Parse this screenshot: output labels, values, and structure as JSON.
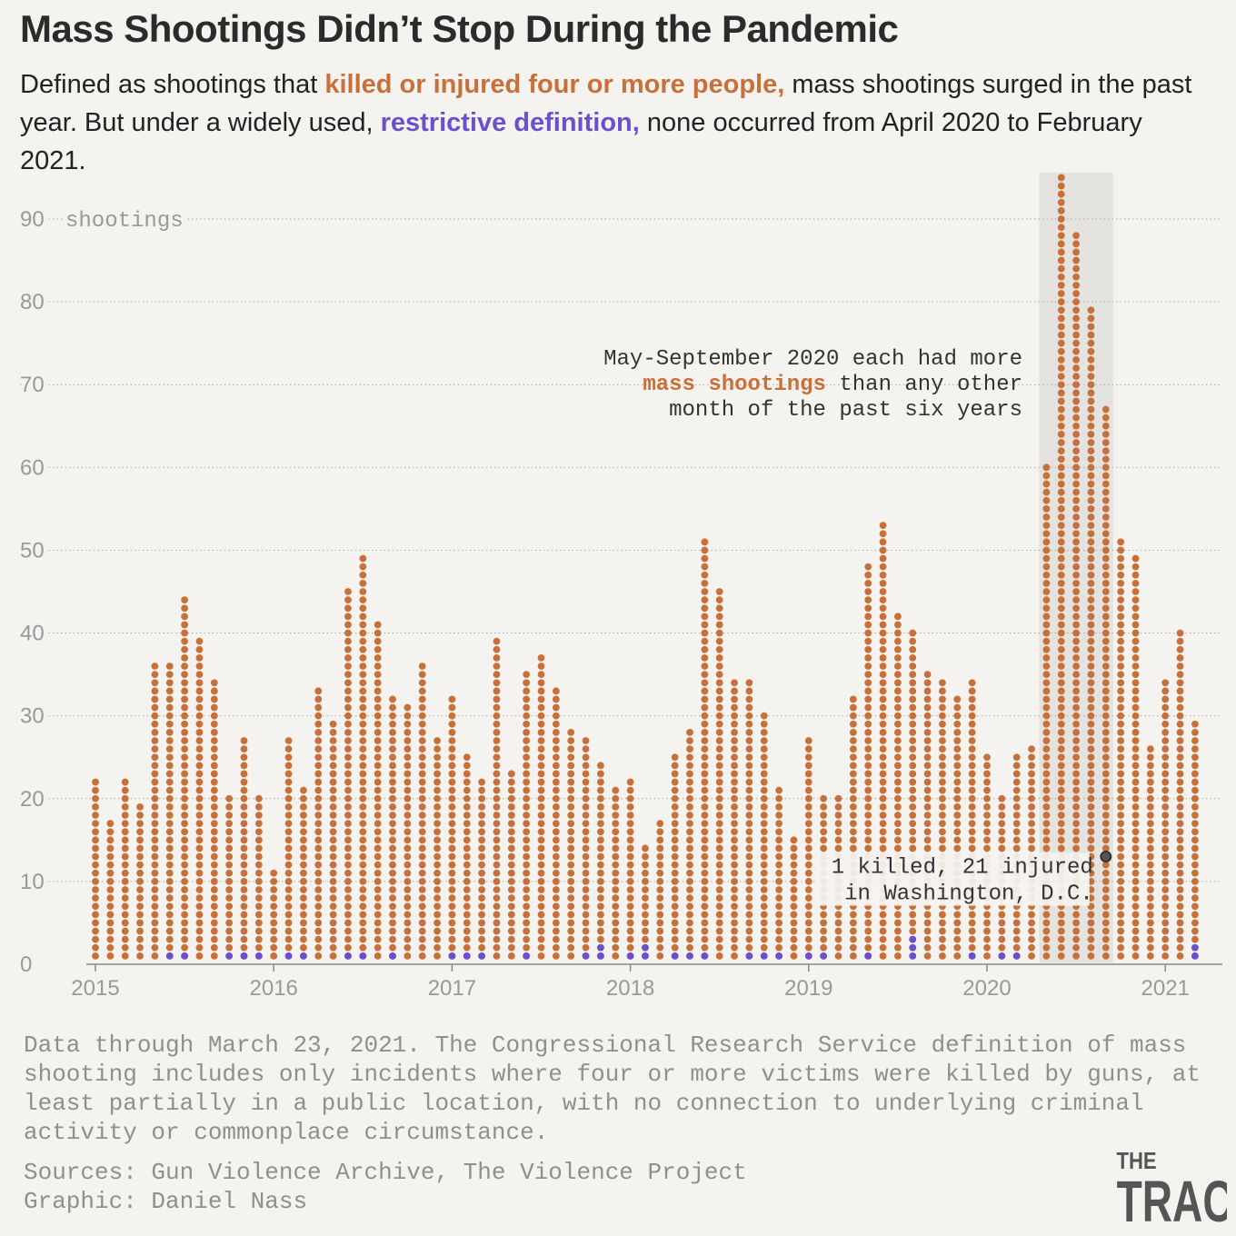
{
  "chart_data": {
    "type": "dot",
    "title": "Mass Shootings Didn’t Stop During the Pandemic",
    "subtitle": [
      "Defined as shootings that",
      "mass shootings surged in the past year. But under a widely used,",
      "none occurred from April 2020 to February 2021."
    ],
    "categories": [
      "2015",
      null,
      null,
      null,
      null,
      null,
      null,
      null,
      null,
      null,
      null,
      null,
      "2016",
      null,
      null,
      null,
      null,
      null,
      null,
      null,
      null,
      null,
      null,
      null,
      "2017",
      null,
      null,
      null,
      null,
      null,
      null,
      null,
      null,
      null,
      null,
      null,
      "2018",
      null,
      null,
      null,
      null,
      null,
      null,
      null,
      null,
      null,
      null,
      null,
      "2019",
      null,
      null,
      null,
      null,
      null,
      null,
      null,
      null,
      null,
      null,
      null,
      "2020",
      null,
      null,
      null,
      null,
      null,
      null,
      null,
      null,
      null,
      null,
      null,
      "2021",
      null,
      null
    ],
    "series": [
      {
        "name": "killed or injured four or more people,",
        "color": "#c8703a",
        "values": [
          22,
          17,
          22,
          19,
          36,
          36,
          44,
          39,
          34,
          20,
          27,
          20,
          11,
          27,
          21,
          33,
          29,
          45,
          49,
          41,
          32,
          31,
          36,
          27,
          32,
          25,
          22,
          39,
          23,
          35,
          37,
          33,
          28,
          27,
          24,
          21,
          22,
          14,
          17,
          25,
          28,
          51,
          45,
          34,
          34,
          30,
          21,
          15,
          27,
          20,
          20,
          32,
          48,
          53,
          42,
          40,
          35,
          34,
          32,
          34,
          25,
          20,
          25,
          26,
          60,
          95,
          88,
          79,
          67,
          51,
          49,
          26,
          34,
          40,
          29
        ]
      },
      {
        "name": "restrictive definition,",
        "color": "#6a4fcf",
        "values": [
          0,
          0,
          0,
          0,
          0,
          1,
          1,
          0,
          0,
          1,
          1,
          1,
          0,
          1,
          1,
          0,
          0,
          1,
          1,
          0,
          1,
          0,
          0,
          0,
          1,
          1,
          1,
          0,
          0,
          1,
          0,
          0,
          0,
          1,
          2,
          0,
          1,
          2,
          0,
          1,
          1,
          1,
          0,
          0,
          1,
          1,
          1,
          0,
          1,
          1,
          0,
          0,
          1,
          0,
          0,
          3,
          0,
          0,
          0,
          1,
          0,
          1,
          1,
          0,
          0,
          0,
          0,
          0,
          0,
          0,
          0,
          0,
          0,
          0,
          2
        ]
      }
    ],
    "ylim": [
      0,
      96
    ],
    "yticks": [
      0,
      10,
      20,
      30,
      40,
      50,
      60,
      70,
      80,
      90
    ],
    "y_unit": "shootings",
    "grid": true,
    "shade": [
      64,
      68
    ],
    "annotation": {
      "lines": [
        "May-September 2020 each had more",
        [
          "mass shootings",
          "than any other"
        ],
        "month of the past six years"
      ]
    },
    "highlight": {
      "index": 68,
      "dot": 13,
      "lines": [
        "1 killed, 21 injured",
        "in Washington, D.C."
      ]
    },
    "footnote": "Data through March 23, 2021. The Congressional Research Service definition of mass shooting includes only incidents where four or more victims were killed by guns, at least partially in a public location, with no connection to underlying criminal activity or commonplace circumstance.",
    "sources": [
      "Sources: Gun Violence Archive, The Violence Project",
      "Graphic: Daniel Nass"
    ],
    "logo": [
      "THE",
      "TRACE"
    ]
  }
}
